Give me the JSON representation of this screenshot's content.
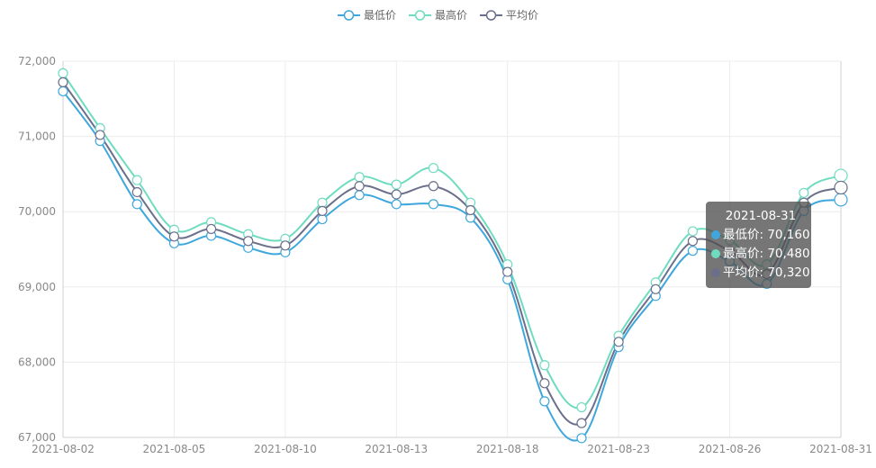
{
  "chart_data": {
    "type": "line",
    "x": [
      "2021-08-02",
      "2021-08-03",
      "2021-08-04",
      "2021-08-05",
      "2021-08-06",
      "2021-08-09",
      "2021-08-10",
      "2021-08-11",
      "2021-08-12",
      "2021-08-13",
      "2021-08-16",
      "2021-08-17",
      "2021-08-18",
      "2021-08-19",
      "2021-08-20",
      "2021-08-23",
      "2021-08-24",
      "2021-08-25",
      "2021-08-26",
      "2021-08-27",
      "2021-08-30",
      "2021-08-31"
    ],
    "xticks": [
      "2021-08-02",
      "2021-08-05",
      "2021-08-10",
      "2021-08-13",
      "2021-08-18",
      "2021-08-23",
      "2021-08-26",
      "2021-08-31"
    ],
    "series": [
      {
        "name": "最低价",
        "color": "#3fa7dc",
        "values": [
          71600,
          70940,
          70100,
          69580,
          69680,
          69520,
          69460,
          69900,
          70220,
          70100,
          70100,
          69920,
          69100,
          67480,
          66990,
          68200,
          68880,
          69480,
          69340,
          69040,
          70010,
          70160
        ]
      },
      {
        "name": "最高价",
        "color": "#6fdcc0",
        "values": [
          71840,
          71110,
          70420,
          69760,
          69860,
          69700,
          69640,
          70120,
          70460,
          70360,
          70580,
          70120,
          69300,
          67960,
          67400,
          68350,
          69060,
          69740,
          69620,
          69300,
          70250,
          70480
        ]
      },
      {
        "name": "平均价",
        "color": "#6b6f8a",
        "values": [
          71720,
          71020,
          70260,
          69670,
          69770,
          69610,
          69550,
          70010,
          70340,
          70230,
          70340,
          70020,
          69200,
          67720,
          67190,
          68270,
          68970,
          69610,
          69480,
          69170,
          70120,
          70320
        ]
      }
    ],
    "ylim": [
      67000,
      72000
    ],
    "yticks": [
      "67,000",
      "68,000",
      "69,000",
      "70,000",
      "71,000",
      "72,000"
    ],
    "grid": true,
    "legend": "top-center"
  },
  "tooltip": {
    "title": "2021-08-31",
    "rows": [
      {
        "label": "最低价: 70,160",
        "color": "#3fa7dc"
      },
      {
        "label": "最高价: 70,480",
        "color": "#6fdcc0"
      },
      {
        "label": "平均价: 70,320",
        "color": "#6b6f8a"
      }
    ]
  }
}
